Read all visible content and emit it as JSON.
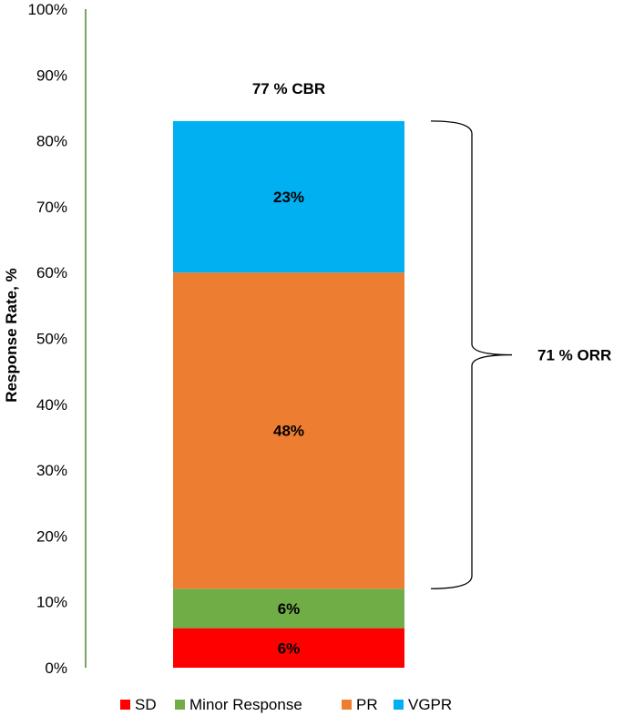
{
  "chart_data": {
    "type": "bar",
    "stacked": true,
    "categories": [
      ""
    ],
    "series": [
      {
        "name": "SD",
        "values": [
          6
        ],
        "color": "#fe0000",
        "data_label": "6%"
      },
      {
        "name": "Minor Response",
        "values": [
          6
        ],
        "color": "#70ad47",
        "data_label": "6%"
      },
      {
        "name": "PR",
        "values": [
          48
        ],
        "color": "#ed7d31",
        "data_label": "48%"
      },
      {
        "name": "VGPR",
        "values": [
          23
        ],
        "color": "#00b0f0",
        "data_label": "23%"
      }
    ],
    "title": "",
    "xlabel": "",
    "ylabel": "Response Rate, %",
    "ylim": [
      0,
      100
    ],
    "yticks": [
      "0%",
      "10%",
      "20%",
      "30%",
      "40%",
      "50%",
      "60%",
      "70%",
      "80%",
      "90%",
      "100%"
    ],
    "annotations": [
      {
        "text": "77 % CBR",
        "target": "top-of-stack"
      },
      {
        "text": "71 % ORR",
        "target": "brace-spanning-PR-and-VGPR",
        "span": [
          12,
          83
        ]
      }
    ],
    "grid": false,
    "legend": "bottom",
    "axis_color": "#548235"
  }
}
